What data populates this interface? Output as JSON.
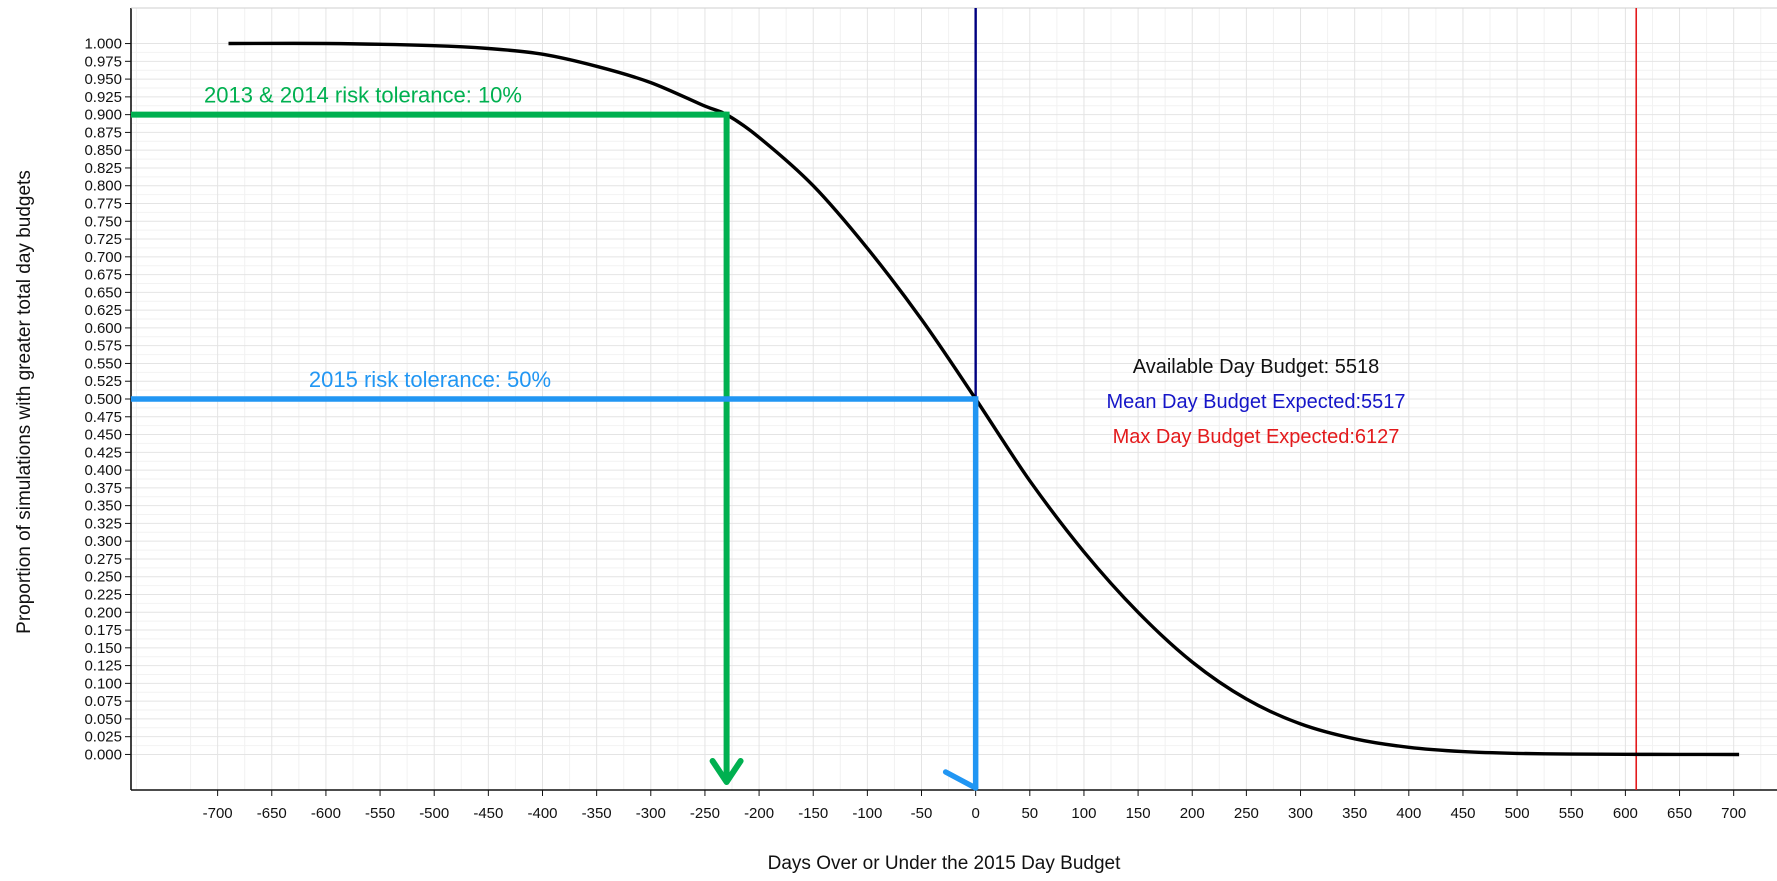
{
  "chart_data": {
    "type": "line",
    "title": "",
    "xlabel": "Days Over or Under the 2015 Day Budget",
    "ylabel": "Proportion of simulations with greater total day budgets",
    "xlim": [
      -780,
      740
    ],
    "ylim": [
      -0.05,
      1.05
    ],
    "grid": true,
    "x_ticks": [
      -700,
      -650,
      -600,
      -550,
      -500,
      -450,
      -400,
      -350,
      -300,
      -250,
      -200,
      -150,
      -100,
      -50,
      0,
      50,
      100,
      150,
      200,
      250,
      300,
      350,
      400,
      450,
      500,
      550,
      600,
      650,
      700
    ],
    "y_ticks": [
      0,
      0.025,
      0.05,
      0.075,
      0.1,
      0.125,
      0.15,
      0.175,
      0.2,
      0.225,
      0.25,
      0.275,
      0.3,
      0.325,
      0.35,
      0.375,
      0.4,
      0.425,
      0.45,
      0.475,
      0.5,
      0.525,
      0.55,
      0.575,
      0.6,
      0.625,
      0.65,
      0.675,
      0.7,
      0.725,
      0.75,
      0.775,
      0.8,
      0.825,
      0.85,
      0.875,
      0.9,
      0.925,
      0.95,
      0.975,
      1.0
    ],
    "y_tick_labels": [
      "0.000",
      "0.025",
      "0.050",
      "0.075",
      "0.100",
      "0.125",
      "0.150",
      "0.175",
      "0.200",
      "0.225",
      "0.250",
      "0.275",
      "0.300",
      "0.325",
      "0.350",
      "0.375",
      "0.400",
      "0.425",
      "0.450",
      "0.475",
      "0.500",
      "0.525",
      "0.550",
      "0.575",
      "0.600",
      "0.625",
      "0.650",
      "0.675",
      "0.700",
      "0.725",
      "0.750",
      "0.775",
      "0.800",
      "0.825",
      "0.850",
      "0.875",
      "0.900",
      "0.925",
      "0.950",
      "0.975",
      "1.000"
    ],
    "series": [
      {
        "color": "#000000",
        "x": [
          -690,
          -600,
          -500,
          -450,
          -400,
          -350,
          -300,
          -250,
          -230,
          -200,
          -150,
          -100,
          -50,
          0,
          50,
          100,
          150,
          200,
          250,
          300,
          350,
          400,
          450,
          500,
          550,
          600,
          650,
          705
        ],
        "y": [
          1.0,
          1.0,
          0.997,
          0.993,
          0.985,
          0.968,
          0.945,
          0.912,
          0.9,
          0.868,
          0.8,
          0.712,
          0.612,
          0.5,
          0.385,
          0.285,
          0.2,
          0.13,
          0.078,
          0.043,
          0.022,
          0.01,
          0.004,
          0.0015,
          0.0005,
          0.0002,
          0.0001,
          0.0
        ]
      }
    ],
    "vlines": [
      {
        "x": 0,
        "color": "#000080"
      },
      {
        "x": 610,
        "color": "#e31a1c"
      }
    ],
    "risk_tolerances": [
      {
        "label": "2013 & 2014 risk tolerance: 10%",
        "y": 0.9,
        "x": -230,
        "color": "#00b050"
      },
      {
        "label": "2015 risk tolerance: 50%",
        "y": 0.5,
        "x": 0,
        "color": "#2196f3"
      }
    ],
    "budget_info": [
      {
        "text": "Available Day Budget: 5518",
        "color": "#111111"
      },
      {
        "text": "Mean Day Budget Expected:5517",
        "color": "#1515c8"
      },
      {
        "text": "Max Day Budget Expected:6127",
        "color": "#e31a1c"
      }
    ]
  }
}
